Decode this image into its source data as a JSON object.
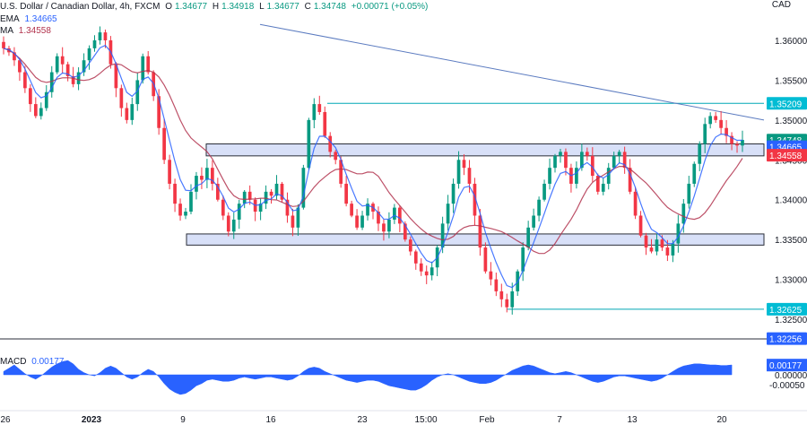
{
  "header": {
    "symbol": "U.S. Dollar / Canadian Dollar, 4h, FXCM",
    "open_label": "O",
    "open": "1.34677",
    "high_label": "H",
    "high": "1.34918",
    "low_label": "L",
    "low": "1.34677",
    "close_label": "C",
    "close": "1.34748",
    "change": "+0.00071 (+0.05%)",
    "ema_label": "EMA",
    "ema_value": "1.34665",
    "ma_label": "MA",
    "ma_value": "1.34558",
    "currency": "CAD"
  },
  "macd": {
    "label": "MACD",
    "value": "0.00177"
  },
  "colors": {
    "up": "#089981",
    "down": "#f23645",
    "ema": "#2962ff",
    "ma": "#b2334d",
    "zone_fill": "#d1dbf7",
    "zone_border": "#2a2e39",
    "trendline": "#5b7bc0",
    "level_line": "#00a8b5",
    "macd_fill": "#2962ff"
  },
  "chart_data": {
    "type": "candlestick",
    "x_tick_labels": [
      "26",
      "2023",
      "9",
      "16",
      "23",
      "15:00",
      "Feb",
      "7",
      "13",
      "20"
    ],
    "y_tick_labels": [
      "1.36000",
      "1.35500",
      "1.35000",
      "1.34500",
      "1.34000",
      "1.33500",
      "1.33000",
      "1.32500"
    ],
    "y_range": [
      1.3246,
      1.3617
    ],
    "price_badges": [
      {
        "label": "1.35209",
        "value": 1.35209,
        "color": "#00bcd4"
      },
      {
        "label": "1.34748",
        "value": 1.34748,
        "color": "#089981"
      },
      {
        "label": "1.34665",
        "value": 1.34665,
        "color": "#2962ff"
      },
      {
        "label": "1.34558",
        "value": 1.34558,
        "color": "#f23645"
      },
      {
        "label": "1.32625",
        "value": 1.32625,
        "color": "#00bcd4"
      },
      {
        "label": "1.32256",
        "value": 1.32256,
        "color": "#2962ff"
      }
    ],
    "zones": [
      {
        "low": 1.3455,
        "high": 1.347
      },
      {
        "low": 1.3343,
        "high": 1.3357
      }
    ],
    "levels": [
      1.35209,
      1.32625
    ],
    "trendline": {
      "from": 1.362,
      "to": 1.35
    },
    "close_path": [
      1.359,
      1.3585,
      1.3575,
      1.356,
      1.354,
      1.352,
      1.3505,
      1.3515,
      1.3535,
      1.356,
      1.358,
      1.357,
      1.3555,
      1.3545,
      1.356,
      1.3575,
      1.359,
      1.36,
      1.361,
      1.36,
      1.357,
      1.354,
      1.3515,
      1.35,
      1.352,
      1.355,
      1.358,
      1.356,
      1.353,
      1.349,
      1.345,
      1.342,
      1.3395,
      1.338,
      1.3385,
      1.341,
      1.343,
      1.3425,
      1.344,
      1.342,
      1.34,
      1.338,
      1.336,
      1.3375,
      1.3395,
      1.341,
      1.34,
      1.3385,
      1.3395,
      1.341,
      1.3405,
      1.342,
      1.34,
      1.338,
      1.3365,
      1.339,
      1.344,
      1.35,
      1.352,
      1.351,
      1.348,
      1.346,
      1.345,
      1.342,
      1.3395,
      1.338,
      1.3365,
      1.338,
      1.3395,
      1.3385,
      1.337,
      1.336,
      1.3375,
      1.339,
      1.337,
      1.335,
      1.3335,
      1.332,
      1.331,
      1.3305,
      1.3315,
      1.334,
      1.337,
      1.3395,
      1.342,
      1.345,
      1.344,
      1.342,
      1.338,
      1.334,
      1.331,
      1.33,
      1.3285,
      1.3275,
      1.3265,
      1.3285,
      1.331,
      1.334,
      1.3365,
      1.338,
      1.34,
      1.342,
      1.344,
      1.3455,
      1.346,
      1.344,
      1.342,
      1.344,
      1.346,
      1.3455,
      1.343,
      1.341,
      1.342,
      1.344,
      1.3455,
      1.346,
      1.344,
      1.341,
      1.338,
      1.3355,
      1.334,
      1.3335,
      1.335,
      1.334,
      1.333,
      1.3345,
      1.337,
      1.3395,
      1.342,
      1.3445,
      1.347,
      1.3495,
      1.3505,
      1.35,
      1.349,
      1.348,
      1.347,
      1.3468,
      1.3475
    ],
    "macd_values": [
      0.0006,
      0.0012,
      0.0018,
      0.001,
      0.0002,
      -0.0004,
      -0.0008,
      -0.0002,
      0.0006,
      0.0014,
      0.002,
      0.0024,
      0.0026,
      0.002,
      0.001,
      0.0004,
      0.0,
      -0.0002,
      0.0004,
      0.0012,
      0.0016,
      0.0012,
      0.0004,
      -0.0004,
      -0.0008,
      -0.0004,
      0.0004,
      0.001,
      0.0006,
      -0.0004,
      -0.0016,
      -0.0026,
      -0.0032,
      -0.0036,
      -0.0034,
      -0.0028,
      -0.002,
      -0.0016,
      -0.001,
      -0.0008,
      -0.001,
      -0.0012,
      -0.0012,
      -0.001,
      -0.0006,
      -0.0004,
      -0.0006,
      -0.0008,
      -0.0006,
      -0.0004,
      -0.0004,
      -0.0006,
      -0.0008,
      -0.001,
      -0.0008,
      -0.0002,
      0.0006,
      0.0012,
      0.0014,
      0.0012,
      0.0006,
      0.0002,
      -0.0002,
      -0.0006,
      -0.001,
      -0.0012,
      -0.0014,
      -0.0012,
      -0.001,
      -0.001,
      -0.0012,
      -0.0016,
      -0.002,
      -0.0022,
      -0.0024,
      -0.0026,
      -0.0028,
      -0.0028,
      -0.0024,
      -0.0018,
      -0.001,
      -0.0004,
      0.0,
      0.0002,
      0.0,
      -0.0004,
      -0.0008,
      -0.0012,
      -0.0014,
      -0.0016,
      -0.0016,
      -0.0014,
      -0.001,
      -0.0004,
      0.0002,
      0.0008,
      0.0012,
      0.0016,
      0.0018,
      0.0016,
      0.0012,
      0.0008,
      0.0004,
      0.0002,
      0.0004,
      0.0006,
      0.0004,
      0.0,
      -0.0004,
      -0.0008,
      -0.0012,
      -0.0014,
      -0.0012,
      -0.0008,
      -0.0004,
      -0.0002,
      -0.0002,
      -0.0004,
      -0.0006,
      -0.0008,
      -0.001,
      -0.0012,
      -0.001,
      -0.0006,
      0.0,
      0.0006,
      0.0012,
      0.0016,
      0.0018,
      0.002,
      0.002,
      0.0019,
      0.0018,
      0.0018,
      0.0017,
      0.0017,
      0.0018
    ],
    "macd_badges": [
      {
        "label": "0.00177",
        "value": 0.00177,
        "color": "#2962ff"
      },
      {
        "label": "0.00000",
        "value": 0.0
      }
    ],
    "macd_axis_labels": [
      {
        "label": "-0.00050",
        "value": -0.0005
      }
    ]
  }
}
